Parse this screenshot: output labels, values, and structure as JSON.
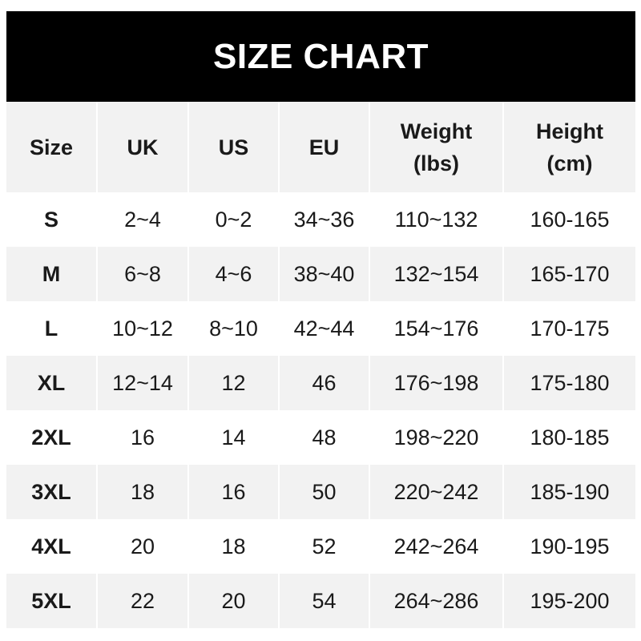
{
  "chart_data": {
    "type": "table",
    "title": "SIZE CHART",
    "columns": [
      "Size",
      "UK",
      "US",
      "EU",
      "Weight\n(lbs)",
      "Height\n(cm)"
    ],
    "rows": [
      [
        "S",
        "2~4",
        "0~2",
        "34~36",
        "110~132",
        "160-165"
      ],
      [
        "M",
        "6~8",
        "4~6",
        "38~40",
        "132~154",
        "165-170"
      ],
      [
        "L",
        "10~12",
        "8~10",
        "42~44",
        "154~176",
        "170-175"
      ],
      [
        "XL",
        "12~14",
        "12",
        "46",
        "176~198",
        "175-180"
      ],
      [
        "2XL",
        "16",
        "14",
        "48",
        "198~220",
        "180-185"
      ],
      [
        "3XL",
        "18",
        "16",
        "50",
        "220~242",
        "185-190"
      ],
      [
        "4XL",
        "20",
        "18",
        "52",
        "242~264",
        "190-195"
      ],
      [
        "5XL",
        "22",
        "20",
        "54",
        "264~286",
        "195-200"
      ]
    ],
    "colors": {
      "title_bg": "#000000",
      "title_text": "#ffffff",
      "stripe": "#f2f2f2"
    }
  }
}
